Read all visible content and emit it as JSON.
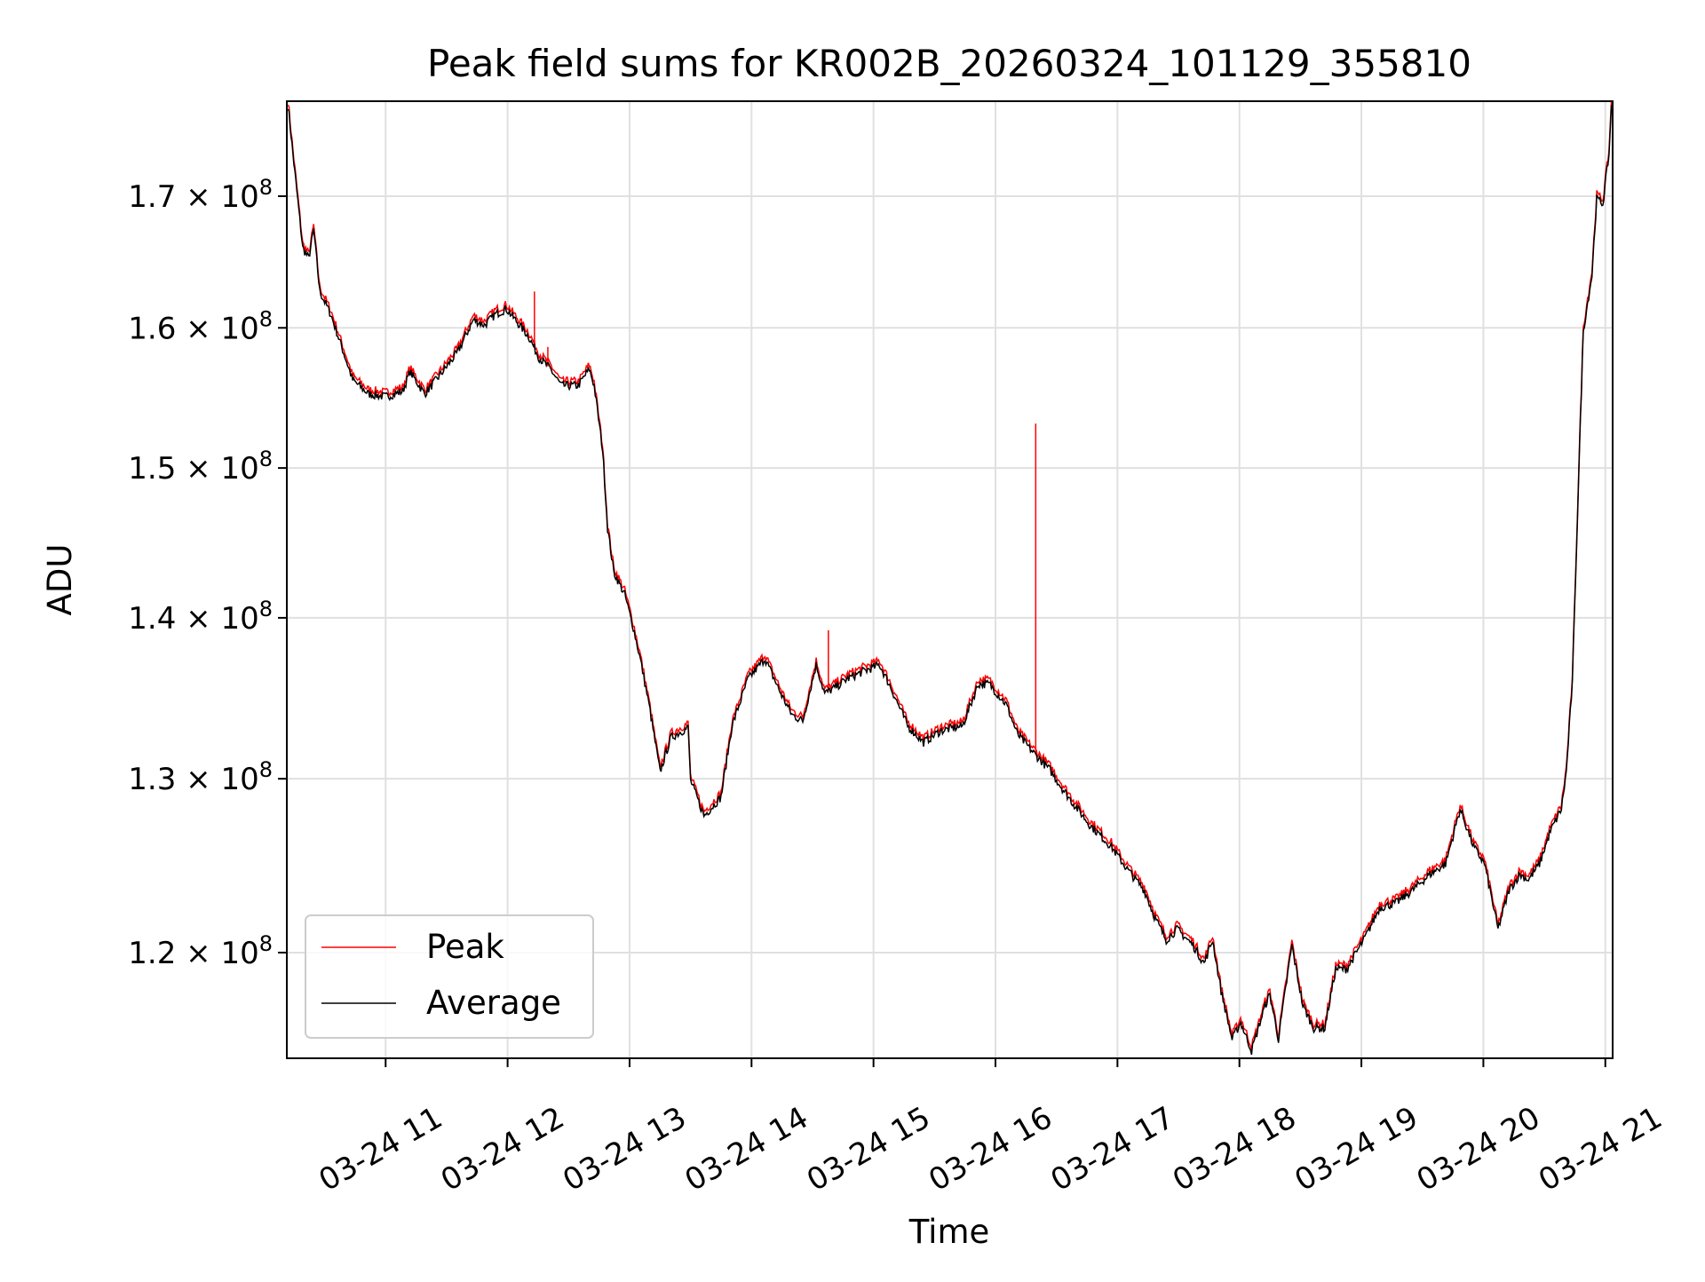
{
  "chart_data": {
    "type": "line",
    "title": "Peak field sums for KR002B_20260324_101129_355810",
    "xlabel": "Time",
    "ylabel": "ADU",
    "yscale": "log",
    "y_unit_multiplier": 100000000,
    "xlim_hours": [
      10.19,
      21.06
    ],
    "ylim": [
      1.143,
      1.776
    ],
    "grid": true,
    "legend_position": "lower-left",
    "x_ticks": [
      {
        "hour": 11,
        "label": "03-24 11"
      },
      {
        "hour": 12,
        "label": "03-24 12"
      },
      {
        "hour": 13,
        "label": "03-24 13"
      },
      {
        "hour": 14,
        "label": "03-24 14"
      },
      {
        "hour": 15,
        "label": "03-24 15"
      },
      {
        "hour": 16,
        "label": "03-24 16"
      },
      {
        "hour": 17,
        "label": "03-24 17"
      },
      {
        "hour": 18,
        "label": "03-24 18"
      },
      {
        "hour": 19,
        "label": "03-24 19"
      },
      {
        "hour": 20,
        "label": "03-24 20"
      },
      {
        "hour": 21,
        "label": "03-24 21"
      }
    ],
    "y_ticks": [
      {
        "value": 1.2,
        "mantissa": "1.2",
        "exp": "8"
      },
      {
        "value": 1.3,
        "mantissa": "1.3",
        "exp": "8"
      },
      {
        "value": 1.4,
        "mantissa": "1.4",
        "exp": "8"
      },
      {
        "value": 1.5,
        "mantissa": "1.5",
        "exp": "8"
      },
      {
        "value": 1.6,
        "mantissa": "1.6",
        "exp": "8"
      },
      {
        "value": 1.7,
        "mantissa": "1.7",
        "exp": "8"
      }
    ],
    "times_suffix": "× 10",
    "series": [
      {
        "name": "Peak",
        "color": "#ff0000",
        "offset_ratio": 1.002,
        "spikes": [
          [
            12.22,
            1.627
          ],
          [
            12.33,
            1.586
          ],
          [
            14.63,
            1.392
          ],
          [
            16.33,
            1.531
          ]
        ]
      },
      {
        "name": "Average",
        "color": "#000000"
      }
    ],
    "average_points": [
      [
        10.2,
        1.773
      ],
      [
        10.24,
        1.733
      ],
      [
        10.32,
        1.66
      ],
      [
        10.37,
        1.652
      ],
      [
        10.41,
        1.674
      ],
      [
        10.46,
        1.627
      ],
      [
        10.55,
        1.61
      ],
      [
        10.64,
        1.586
      ],
      [
        10.73,
        1.562
      ],
      [
        10.86,
        1.552
      ],
      [
        11.0,
        1.55
      ],
      [
        11.14,
        1.554
      ],
      [
        11.2,
        1.568
      ],
      [
        11.32,
        1.552
      ],
      [
        11.45,
        1.566
      ],
      [
        11.59,
        1.582
      ],
      [
        11.72,
        1.606
      ],
      [
        11.81,
        1.602
      ],
      [
        11.9,
        1.61
      ],
      [
        11.99,
        1.614
      ],
      [
        12.08,
        1.604
      ],
      [
        12.17,
        1.594
      ],
      [
        12.26,
        1.578
      ],
      [
        12.35,
        1.57
      ],
      [
        12.44,
        1.558
      ],
      [
        12.58,
        1.558
      ],
      [
        12.67,
        1.57
      ],
      [
        12.71,
        1.558
      ],
      [
        12.78,
        1.512
      ],
      [
        12.82,
        1.459
      ],
      [
        12.87,
        1.43
      ],
      [
        12.96,
        1.415
      ],
      [
        13.03,
        1.394
      ],
      [
        13.09,
        1.373
      ],
      [
        13.16,
        1.345
      ],
      [
        13.25,
        1.304
      ],
      [
        13.34,
        1.325
      ],
      [
        13.48,
        1.331
      ],
      [
        13.5,
        1.299
      ],
      [
        13.61,
        1.278
      ],
      [
        13.75,
        1.289
      ],
      [
        13.84,
        1.332
      ],
      [
        13.97,
        1.361
      ],
      [
        14.11,
        1.374
      ],
      [
        14.24,
        1.352
      ],
      [
        14.33,
        1.339
      ],
      [
        14.42,
        1.335
      ],
      [
        14.53,
        1.37
      ],
      [
        14.6,
        1.352
      ],
      [
        14.69,
        1.356
      ],
      [
        14.78,
        1.361
      ],
      [
        14.92,
        1.366
      ],
      [
        15.05,
        1.37
      ],
      [
        15.14,
        1.356
      ],
      [
        15.28,
        1.332
      ],
      [
        15.41,
        1.322
      ],
      [
        15.55,
        1.329
      ],
      [
        15.73,
        1.332
      ],
      [
        15.86,
        1.358
      ],
      [
        15.95,
        1.358
      ],
      [
        16.09,
        1.345
      ],
      [
        16.18,
        1.327
      ],
      [
        16.32,
        1.315
      ],
      [
        16.45,
        1.305
      ],
      [
        16.54,
        1.295
      ],
      [
        16.63,
        1.286
      ],
      [
        16.77,
        1.273
      ],
      [
        16.95,
        1.26
      ],
      [
        17.08,
        1.247
      ],
      [
        17.22,
        1.235
      ],
      [
        17.31,
        1.219
      ],
      [
        17.4,
        1.207
      ],
      [
        17.49,
        1.213
      ],
      [
        17.62,
        1.204
      ],
      [
        17.71,
        1.194
      ],
      [
        17.78,
        1.207
      ],
      [
        17.85,
        1.179
      ],
      [
        17.94,
        1.153
      ],
      [
        18.01,
        1.162
      ],
      [
        18.1,
        1.147
      ],
      [
        18.21,
        1.171
      ],
      [
        18.25,
        1.177
      ],
      [
        18.32,
        1.153
      ],
      [
        18.43,
        1.204
      ],
      [
        18.52,
        1.171
      ],
      [
        18.61,
        1.159
      ],
      [
        18.7,
        1.159
      ],
      [
        18.79,
        1.191
      ],
      [
        18.88,
        1.191
      ],
      [
        19.02,
        1.207
      ],
      [
        19.15,
        1.225
      ],
      [
        19.29,
        1.228
      ],
      [
        19.42,
        1.235
      ],
      [
        19.56,
        1.244
      ],
      [
        19.69,
        1.25
      ],
      [
        19.81,
        1.282
      ],
      [
        19.92,
        1.26
      ],
      [
        20.01,
        1.25
      ],
      [
        20.12,
        1.213
      ],
      [
        20.21,
        1.235
      ],
      [
        20.3,
        1.244
      ],
      [
        20.37,
        1.241
      ],
      [
        20.46,
        1.25
      ],
      [
        20.55,
        1.269
      ],
      [
        20.64,
        1.282
      ],
      [
        20.68,
        1.304
      ],
      [
        20.73,
        1.359
      ],
      [
        20.78,
        1.489
      ],
      [
        20.82,
        1.598
      ],
      [
        20.89,
        1.639
      ],
      [
        20.93,
        1.698
      ],
      [
        20.98,
        1.694
      ],
      [
        21.03,
        1.733
      ],
      [
        21.05,
        1.773
      ]
    ]
  }
}
